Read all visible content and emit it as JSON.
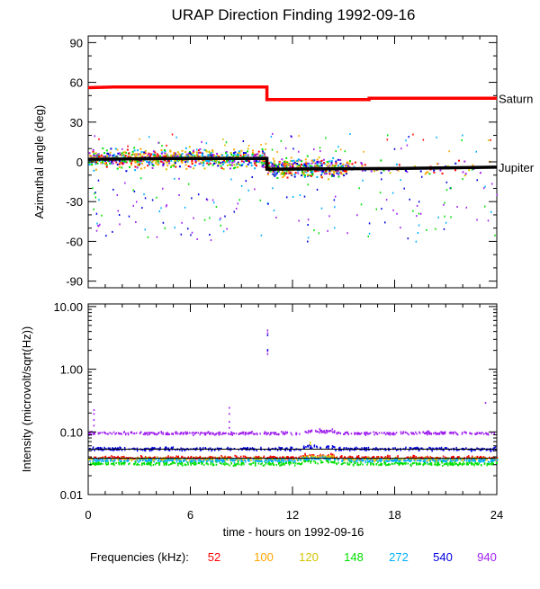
{
  "title": "URAP Direction Finding  1992-09-16",
  "xlabel": "time - hours on 1992-09-16",
  "frequency_label": "Frequencies (kHz):",
  "frequencies": [
    {
      "label": "52",
      "color": "#ff0000"
    },
    {
      "label": "100",
      "color": "#ffa500"
    },
    {
      "label": "120",
      "color": "#d4c400"
    },
    {
      "label": "148",
      "color": "#00e000"
    },
    {
      "label": "272",
      "color": "#00b0ff"
    },
    {
      "label": "540",
      "color": "#0000e0"
    },
    {
      "label": "940",
      "color": "#a020f0"
    }
  ],
  "chart_data": [
    {
      "type": "scatter",
      "ylabel": "Azimuthal angle (deg)",
      "xlim": [
        0,
        24
      ],
      "ylim": [
        -95,
        95
      ],
      "xticks": [
        "0",
        "6",
        "12",
        "18",
        "24"
      ],
      "yticks": [
        90,
        60,
        30,
        0,
        -30,
        -60,
        -90
      ],
      "reference_lines": [
        {
          "name": "Saturn",
          "color": "#ff0000",
          "points": [
            [
              0,
              56
            ],
            [
              1.5,
              56.5
            ],
            [
              10.5,
              56.5
            ],
            [
              10.5,
              47
            ],
            [
              16.5,
              47
            ],
            [
              16.5,
              48
            ],
            [
              24,
              48
            ]
          ]
        },
        {
          "name": "Jupiter",
          "color": "#000000",
          "points": [
            [
              0,
              2
            ],
            [
              5,
              2.5
            ],
            [
              10.5,
              2.5
            ],
            [
              10.5,
              -5.5
            ],
            [
              18,
              -5
            ],
            [
              24,
              -4
            ]
          ]
        }
      ]
    },
    {
      "type": "scatter",
      "ylabel": "Intensity (microvolt/sqrt(Hz))",
      "yscale": "log",
      "xlim": [
        0,
        24
      ],
      "ylim": [
        0.01,
        11
      ],
      "xticks": [
        "0",
        "6",
        "12",
        "18",
        "24"
      ],
      "yticks": [
        {
          "value": 10,
          "label": "10.00"
        },
        {
          "value": 1,
          "label": "1.00"
        },
        {
          "value": 0.1,
          "label": "0.10"
        },
        {
          "value": 0.01,
          "label": "0.01"
        }
      ],
      "background_levels": [
        {
          "freq": "940",
          "color": "#a020f0",
          "value": 0.098
        },
        {
          "freq": "540",
          "color": "#0000e0",
          "value": 0.055
        },
        {
          "freq": "52",
          "color": "#ff0000",
          "value": 0.04
        },
        {
          "freq": "120",
          "color": "#d4c400",
          "value": 0.038
        },
        {
          "freq": "272",
          "color": "#00b0ff",
          "value": 0.036
        },
        {
          "freq": "148",
          "color": "#00e000",
          "value": 0.032
        }
      ],
      "reference_lines": [
        {
          "color": "#000000",
          "value": 0.053
        },
        {
          "color": "#000000",
          "value": 0.038
        }
      ]
    }
  ]
}
